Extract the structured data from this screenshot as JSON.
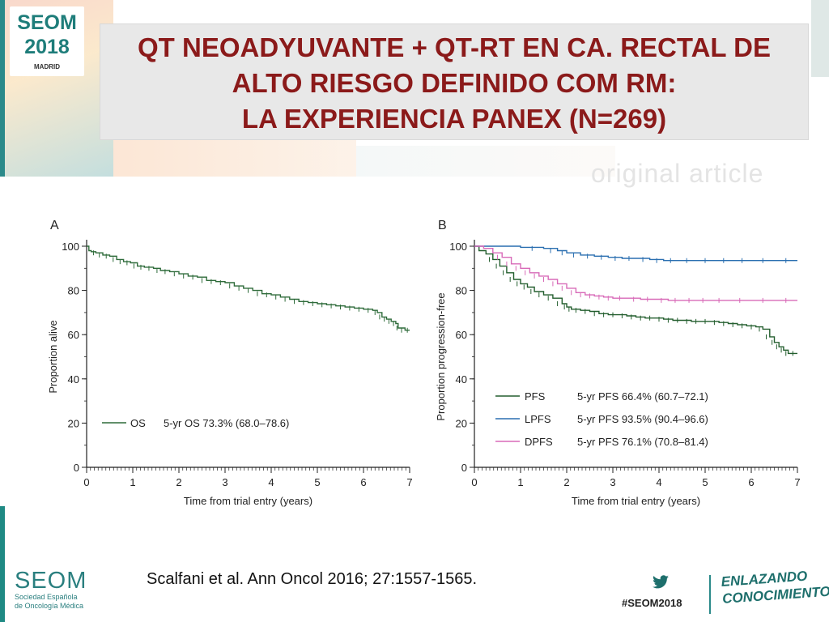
{
  "logo": {
    "name": "SEOM",
    "year": "2018",
    "city": "MADRID"
  },
  "title_lines": [
    "QT NEOADYUVANTE + QT-RT EN CA. RECTAL DE",
    "ALTO RIESGO DEFINIDO COM RM:",
    "LA EXPERIENCIA PANEX (N=269)"
  ],
  "ghost_text": "original article",
  "colors": {
    "title": "#8b1a1a",
    "brand_teal": "#1e7d7a",
    "os": "#2e6b3a",
    "pfs": "#235e2e",
    "lpfs": "#2a6fb0",
    "dpfs": "#d86ab8"
  },
  "chart_data": [
    {
      "type": "line",
      "panel_label": "A",
      "xlabel": "Time from trial entry (years)",
      "ylabel": "Proportion alive",
      "xlim": [
        0,
        7
      ],
      "ylim": [
        0,
        100
      ],
      "x_ticks": [
        "0",
        "1",
        "2",
        "3",
        "4",
        "5",
        "6",
        "7"
      ],
      "y_ticks": [
        "0",
        "20",
        "40",
        "60",
        "80",
        "100"
      ],
      "legend_position": "bottom-left",
      "series": [
        {
          "name": "OS",
          "legend_text": "5-yr OS 73.3% (68.0–78.6)",
          "color": "#2e6b3a",
          "x": [
            0,
            0.05,
            0.1,
            0.2,
            0.35,
            0.5,
            0.65,
            0.8,
            0.95,
            1.1,
            1.25,
            1.45,
            1.6,
            1.8,
            2.0,
            2.2,
            2.4,
            2.6,
            2.8,
            3.0,
            3.2,
            3.4,
            3.6,
            3.8,
            4.0,
            4.2,
            4.4,
            4.6,
            4.8,
            5.0,
            5.2,
            5.4,
            5.6,
            5.8,
            6.0,
            6.2,
            6.3,
            6.4,
            6.5,
            6.6,
            6.7,
            6.75,
            6.9,
            7.0
          ],
          "y": [
            100,
            98,
            97.5,
            97,
            96,
            95.5,
            94,
            93,
            92.5,
            91,
            90.5,
            90,
            89,
            88.5,
            87.5,
            86.5,
            86,
            84.5,
            84,
            83.5,
            82,
            81,
            80,
            78.5,
            78,
            77,
            76,
            75,
            74.5,
            74,
            73.5,
            73,
            72.5,
            72,
            71.5,
            71,
            70,
            68,
            67,
            66,
            65,
            63,
            62,
            62
          ]
        }
      ]
    },
    {
      "type": "line",
      "panel_label": "B",
      "xlabel": "Time from trial entry (years)",
      "ylabel": "Proportion progression-free",
      "xlim": [
        0,
        7
      ],
      "ylim": [
        0,
        100
      ],
      "x_ticks": [
        "0",
        "1",
        "2",
        "3",
        "4",
        "5",
        "6",
        "7"
      ],
      "y_ticks": [
        "0",
        "20",
        "40",
        "60",
        "80",
        "100"
      ],
      "legend_position": "bottom-left",
      "series": [
        {
          "name": "PFS",
          "legend_text": "5-yr PFS 66.4% (60.7–72.1)",
          "color": "#235e2e",
          "x": [
            0,
            0.1,
            0.25,
            0.4,
            0.55,
            0.7,
            0.85,
            1.0,
            1.15,
            1.3,
            1.5,
            1.7,
            1.9,
            2.0,
            2.1,
            2.3,
            2.5,
            2.7,
            2.9,
            3.1,
            3.3,
            3.5,
            3.7,
            3.9,
            4.1,
            4.3,
            4.5,
            4.7,
            4.9,
            5.1,
            5.3,
            5.5,
            5.7,
            5.9,
            6.1,
            6.25,
            6.4,
            6.5,
            6.6,
            6.7,
            6.8,
            7.0
          ],
          "y": [
            100,
            98,
            96.5,
            94,
            91,
            88,
            85,
            83,
            81.5,
            79.5,
            78,
            76.5,
            74,
            72.5,
            71.5,
            71,
            70.5,
            69.5,
            69,
            69,
            68.5,
            68,
            67.5,
            67.5,
            67,
            66.5,
            66.5,
            66,
            66,
            66,
            65.5,
            65,
            64.5,
            64,
            63.5,
            62.5,
            59,
            56.5,
            54.5,
            53,
            51.5,
            51.5
          ]
        },
        {
          "name": "LPFS",
          "legend_text": "5-yr PFS 93.5% (90.4–96.6)",
          "color": "#2a6fb0",
          "x": [
            0,
            0.5,
            1.0,
            1.5,
            1.8,
            2.0,
            2.3,
            2.6,
            2.9,
            3.2,
            3.5,
            3.8,
            4.1,
            4.4,
            4.8,
            5.2,
            5.6,
            6.0,
            6.5,
            7.0
          ],
          "y": [
            100,
            100,
            99.5,
            99,
            98,
            97,
            96,
            95.5,
            95,
            94.5,
            94.5,
            94,
            93.5,
            93.5,
            93.5,
            93.5,
            93.5,
            93.5,
            93.5,
            93.5
          ]
        },
        {
          "name": "DPFS",
          "legend_text": "5-yr PFS 76.1% (70.8–81.4)",
          "color": "#d86ab8",
          "x": [
            0,
            0.2,
            0.4,
            0.6,
            0.8,
            1.0,
            1.2,
            1.4,
            1.6,
            1.8,
            2.0,
            2.2,
            2.4,
            2.6,
            2.8,
            3.0,
            3.3,
            3.6,
            3.9,
            4.2,
            4.5,
            4.8,
            5.1,
            5.5,
            6.0,
            6.5,
            7.0
          ],
          "y": [
            100,
            99,
            97,
            95,
            92,
            90,
            88,
            86.5,
            85,
            83,
            81,
            79,
            78,
            77.5,
            77,
            76.5,
            76.5,
            76,
            76,
            75.5,
            75.5,
            75.5,
            75.5,
            75.5,
            75.5,
            75.5,
            75.5
          ]
        }
      ]
    }
  ],
  "citation": "Scalfani et al.  Ann Oncol 2016; 27:1557-1565.",
  "footer": {
    "seom_name": "SEOM",
    "seom_sub_line1": "Sociedad Española",
    "seom_sub_line2": "de Oncología Médica",
    "hashtag": "#SEOM2018",
    "slogan_line1": "ENLAZANDO",
    "slogan_line2": "CONOCIMIENTO"
  }
}
